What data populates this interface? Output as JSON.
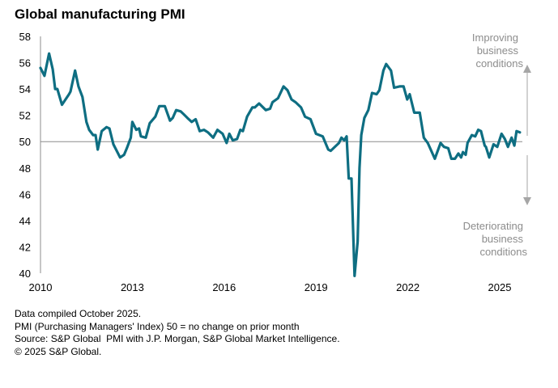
{
  "chart_data": {
    "type": "line",
    "title": "Global manufacturing PMI",
    "xlabel": "",
    "ylabel": "",
    "xlim": [
      2010,
      2025.9
    ],
    "ylim": [
      40,
      58
    ],
    "x_ticks": [
      "2010",
      "2013",
      "2016",
      "2019",
      "2022",
      "2025"
    ],
    "x_tick_values": [
      2010,
      2013,
      2016,
      2019,
      2022,
      2025
    ],
    "y_ticks": [
      40,
      42,
      44,
      46,
      48,
      50,
      52,
      54,
      56,
      58
    ],
    "reference_line": 50,
    "grid": false,
    "color": "#0e6e82",
    "annotations": {
      "improving": [
        "Improving",
        "business",
        "conditions"
      ],
      "deteriorating": [
        "Deteriorating",
        "business",
        "conditions"
      ]
    },
    "series": [
      {
        "name": "Global manufacturing PMI",
        "points": [
          [
            2010.0,
            55.6
          ],
          [
            2010.13,
            55.0
          ],
          [
            2010.28,
            56.7
          ],
          [
            2010.4,
            55.5
          ],
          [
            2010.48,
            54.0
          ],
          [
            2010.55,
            54.0
          ],
          [
            2010.7,
            52.8
          ],
          [
            2010.93,
            53.6
          ],
          [
            2010.98,
            53.8
          ],
          [
            2011.13,
            55.4
          ],
          [
            2011.24,
            54.2
          ],
          [
            2011.37,
            53.4
          ],
          [
            2011.5,
            51.5
          ],
          [
            2011.59,
            50.9
          ],
          [
            2011.72,
            50.5
          ],
          [
            2011.8,
            50.5
          ],
          [
            2011.87,
            49.4
          ],
          [
            2012.0,
            50.8
          ],
          [
            2012.16,
            51.1
          ],
          [
            2012.25,
            51.0
          ],
          [
            2012.38,
            49.8
          ],
          [
            2012.6,
            48.8
          ],
          [
            2012.73,
            49.0
          ],
          [
            2012.82,
            49.5
          ],
          [
            2012.95,
            50.3
          ],
          [
            2013.0,
            51.5
          ],
          [
            2013.13,
            50.9
          ],
          [
            2013.22,
            51.0
          ],
          [
            2013.28,
            50.4
          ],
          [
            2013.44,
            50.3
          ],
          [
            2013.57,
            51.4
          ],
          [
            2013.75,
            51.9
          ],
          [
            2013.88,
            52.7
          ],
          [
            2014.06,
            52.7
          ],
          [
            2014.23,
            51.6
          ],
          [
            2014.32,
            51.8
          ],
          [
            2014.43,
            52.4
          ],
          [
            2014.58,
            52.3
          ],
          [
            2014.67,
            52.1
          ],
          [
            2014.8,
            51.8
          ],
          [
            2014.94,
            51.5
          ],
          [
            2015.07,
            51.7
          ],
          [
            2015.2,
            50.8
          ],
          [
            2015.34,
            50.9
          ],
          [
            2015.47,
            50.7
          ],
          [
            2015.64,
            50.3
          ],
          [
            2015.78,
            50.9
          ],
          [
            2015.95,
            50.6
          ],
          [
            2016.08,
            49.9
          ],
          [
            2016.17,
            50.6
          ],
          [
            2016.28,
            50.1
          ],
          [
            2016.42,
            50.2
          ],
          [
            2016.53,
            50.9
          ],
          [
            2016.61,
            50.8
          ],
          [
            2016.75,
            51.9
          ],
          [
            2016.92,
            52.6
          ],
          [
            2017.0,
            52.6
          ],
          [
            2017.14,
            52.9
          ],
          [
            2017.36,
            52.4
          ],
          [
            2017.5,
            52.5
          ],
          [
            2017.58,
            53.0
          ],
          [
            2017.76,
            53.3
          ],
          [
            2017.94,
            54.2
          ],
          [
            2018.07,
            53.9
          ],
          [
            2018.2,
            53.2
          ],
          [
            2018.33,
            53.0
          ],
          [
            2018.51,
            52.6
          ],
          [
            2018.64,
            51.9
          ],
          [
            2018.82,
            51.7
          ],
          [
            2019.0,
            50.6
          ],
          [
            2019.22,
            50.4
          ],
          [
            2019.4,
            49.4
          ],
          [
            2019.48,
            49.3
          ],
          [
            2019.75,
            49.9
          ],
          [
            2019.83,
            50.3
          ],
          [
            2019.92,
            50.1
          ],
          [
            2020.0,
            50.4
          ],
          [
            2020.07,
            47.2
          ],
          [
            2020.16,
            47.2
          ],
          [
            2020.26,
            39.8
          ],
          [
            2020.36,
            42.4
          ],
          [
            2020.42,
            48.0
          ],
          [
            2020.48,
            50.5
          ],
          [
            2020.58,
            51.8
          ],
          [
            2020.71,
            52.4
          ],
          [
            2020.83,
            53.7
          ],
          [
            2020.98,
            53.6
          ],
          [
            2021.07,
            53.9
          ],
          [
            2021.2,
            55.4
          ],
          [
            2021.29,
            55.9
          ],
          [
            2021.45,
            55.4
          ],
          [
            2021.55,
            54.1
          ],
          [
            2021.73,
            54.2
          ],
          [
            2021.86,
            54.2
          ],
          [
            2021.98,
            53.2
          ],
          [
            2022.06,
            53.6
          ],
          [
            2022.21,
            52.2
          ],
          [
            2022.39,
            52.2
          ],
          [
            2022.52,
            50.3
          ],
          [
            2022.65,
            49.9
          ],
          [
            2022.88,
            48.7
          ],
          [
            2023.07,
            49.9
          ],
          [
            2023.18,
            49.6
          ],
          [
            2023.32,
            49.5
          ],
          [
            2023.42,
            48.7
          ],
          [
            2023.54,
            48.7
          ],
          [
            2023.65,
            49.1
          ],
          [
            2023.74,
            48.8
          ],
          [
            2023.8,
            49.2
          ],
          [
            2023.89,
            49.0
          ],
          [
            2023.95,
            49.9
          ],
          [
            2024.09,
            50.5
          ],
          [
            2024.2,
            50.4
          ],
          [
            2024.3,
            50.9
          ],
          [
            2024.39,
            50.8
          ],
          [
            2024.51,
            49.7
          ],
          [
            2024.55,
            49.6
          ],
          [
            2024.66,
            48.8
          ],
          [
            2024.8,
            49.8
          ],
          [
            2024.92,
            49.6
          ],
          [
            2025.06,
            50.6
          ],
          [
            2025.17,
            50.2
          ],
          [
            2025.27,
            49.6
          ],
          [
            2025.39,
            50.3
          ],
          [
            2025.48,
            49.7
          ],
          [
            2025.55,
            50.8
          ],
          [
            2025.66,
            50.7
          ]
        ]
      }
    ]
  },
  "notes": [
    "Data compiled October 2025.",
    "PMI (Purchasing Managers' Index) 50 = no change on prior month",
    "Source: S&P Global  PMI with J.P. Morgan, S&P Global Market Intelligence.",
    "© 2025 S&P Global."
  ]
}
